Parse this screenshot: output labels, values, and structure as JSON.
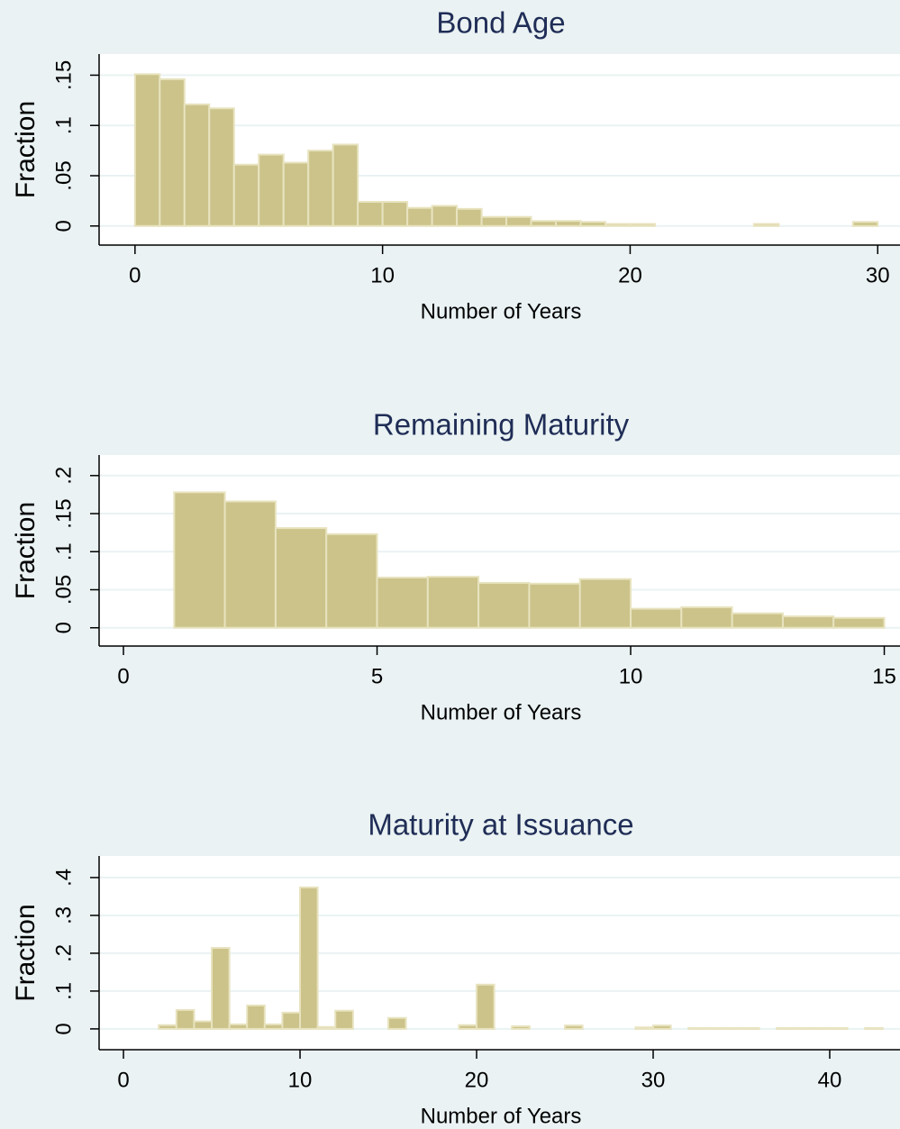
{
  "chart_data": [
    {
      "type": "histogram",
      "title": "Bond Age",
      "x_label": "Number of Years",
      "y_label": "Fraction",
      "color": "#cbc38a",
      "grid": true,
      "bins": [
        0,
        1,
        2,
        3,
        4,
        5,
        6,
        7,
        8,
        9,
        10,
        11,
        12,
        13,
        14,
        15,
        16,
        17,
        18,
        19,
        20,
        21,
        22,
        23,
        24,
        25,
        26,
        27,
        28,
        29,
        30
      ],
      "values": [
        0.151,
        0.146,
        0.121,
        0.117,
        0.061,
        0.071,
        0.063,
        0.075,
        0.081,
        0.024,
        0.024,
        0.018,
        0.02,
        0.017,
        0.009,
        0.009,
        0.005,
        0.005,
        0.004,
        0.002,
        0.002,
        0,
        0,
        0,
        0,
        0.002,
        0,
        0,
        0,
        0.004
      ],
      "xlim": [
        -1.45,
        30.9
      ],
      "ylim": [
        -0.019,
        0.171
      ],
      "xticks": [
        0,
        10,
        20,
        30
      ],
      "yticks": [
        0,
        {
          "value": 0.05,
          "label": ".05"
        },
        {
          "value": 0.1,
          "label": ".1"
        },
        {
          "value": 0.15,
          "label": ".15"
        }
      ]
    },
    {
      "type": "histogram",
      "title": "Remaining Maturity",
      "x_label": "Number of Years",
      "y_label": "Fraction",
      "color": "#cbc38a",
      "grid": true,
      "bins": [
        1,
        2,
        3,
        4,
        5,
        6,
        7,
        8,
        9,
        10,
        11,
        12,
        13,
        14,
        15
      ],
      "values": [
        0.178,
        0.166,
        0.131,
        0.123,
        0.066,
        0.067,
        0.059,
        0.058,
        0.064,
        0.025,
        0.027,
        0.019,
        0.015,
        0.013
      ],
      "xlim": [
        -0.48,
        15.31
      ],
      "ylim": [
        -0.024,
        0.227
      ],
      "xticks": [
        0,
        5,
        10,
        15
      ],
      "yticks": [
        0,
        {
          "value": 0.05,
          "label": ".05"
        },
        {
          "value": 0.1,
          "label": ".1"
        },
        {
          "value": 0.15,
          "label": ".15"
        },
        {
          "value": 0.2,
          "label": ".2"
        }
      ]
    },
    {
      "type": "histogram",
      "title": "Maturity at Issuance",
      "x_label": "Number of Years",
      "y_label": "Fraction",
      "color": "#cbc38a",
      "grid": true,
      "bins": [
        2,
        3,
        4,
        5,
        6,
        7,
        8,
        9,
        10,
        11,
        12,
        13,
        14,
        15,
        16,
        17,
        18,
        19,
        20,
        21,
        22,
        23,
        24,
        25,
        26,
        27,
        28,
        29,
        30,
        31,
        32,
        33,
        34,
        35,
        36,
        37,
        38,
        39,
        40,
        41,
        42,
        43
      ],
      "values": [
        0.01,
        0.05,
        0.02,
        0.214,
        0.012,
        0.062,
        0.012,
        0.043,
        0.374,
        0.005,
        0.048,
        0,
        0,
        0.029,
        0,
        0,
        0,
        0.01,
        0.117,
        0,
        0.007,
        0,
        0,
        0.009,
        0,
        0,
        0,
        0.004,
        0.009,
        0,
        0.002,
        0.002,
        0.002,
        0.002,
        0,
        0.002,
        0.002,
        0.002,
        0.002,
        0,
        0.002
      ],
      "xlim": [
        -1.38,
        43.98
      ],
      "ylim": [
        -0.055,
        0.457
      ],
      "xticks": [
        0,
        10,
        20,
        30,
        40
      ],
      "yticks": [
        0,
        {
          "value": 0.1,
          "label": ".1"
        },
        {
          "value": 0.2,
          "label": ".2"
        },
        {
          "value": 0.3,
          "label": ".3"
        },
        {
          "value": 0.4,
          "label": ".4"
        }
      ]
    }
  ]
}
